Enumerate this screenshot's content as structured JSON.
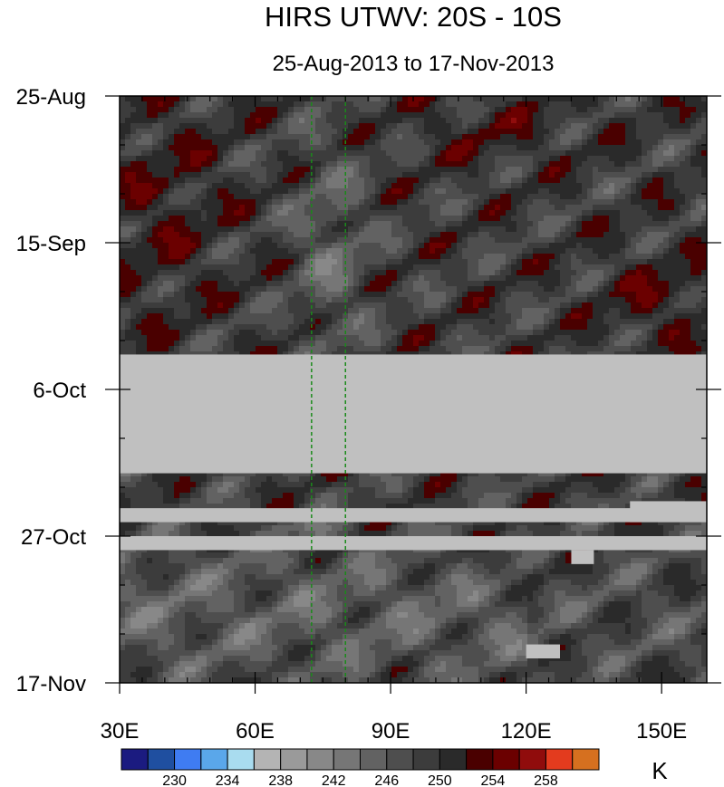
{
  "chart_data": {
    "type": "heatmap",
    "title": "HIRS UTWV: 20S - 10S",
    "subtitle": "25-Aug-2013 to 17-Nov-2013",
    "x_axis": {
      "range": [
        30,
        160
      ],
      "ticks": [
        30,
        60,
        90,
        120,
        150
      ],
      "tick_labels": [
        "30E",
        "60E",
        "90E",
        "120E",
        "150E"
      ]
    },
    "y_axis": {
      "range_days": [
        0,
        84
      ],
      "ticks_days": [
        0,
        21,
        42,
        63,
        84
      ],
      "tick_labels": [
        "25-Aug",
        "15-Sep",
        "6-Oct",
        "27-Oct",
        "17-Nov"
      ],
      "reversed": true
    },
    "reference_lines_lon": [
      72.5,
      80
    ],
    "missing_bands_days": [
      [
        37,
        54
      ],
      [
        59,
        61
      ],
      [
        63,
        65
      ]
    ],
    "missing_boxes": [
      {
        "lon": [
          143,
          160
        ],
        "days": [
          58,
          61
        ]
      },
      {
        "lon": [
          130,
          135
        ],
        "days": [
          65,
          67
        ]
      },
      {
        "lon": [
          120,
          127.5
        ],
        "days": [
          78.5,
          80.5
        ]
      }
    ],
    "colorbar": {
      "levels": [
        228,
        230,
        232,
        234,
        236,
        238,
        240,
        242,
        244,
        246,
        248,
        250,
        252,
        254,
        256,
        258,
        260
      ],
      "labels": [
        "230",
        "234",
        "238",
        "242",
        "246",
        "250",
        "254",
        "258"
      ],
      "colors": [
        "#1b1b80",
        "#1f4fa0",
        "#3f7cf2",
        "#5aa7ea",
        "#a9dcef",
        "#b4b4b4",
        "#9a9a9a",
        "#888888",
        "#767676",
        "#626262",
        "#4e4e4e",
        "#3c3c3c",
        "#2a2a2a",
        "#4a0000",
        "#6b0000",
        "#900c0c",
        "#e33b1e",
        "#d6701f"
      ],
      "unit": "K"
    },
    "missing_color": "#c0c0c0"
  }
}
